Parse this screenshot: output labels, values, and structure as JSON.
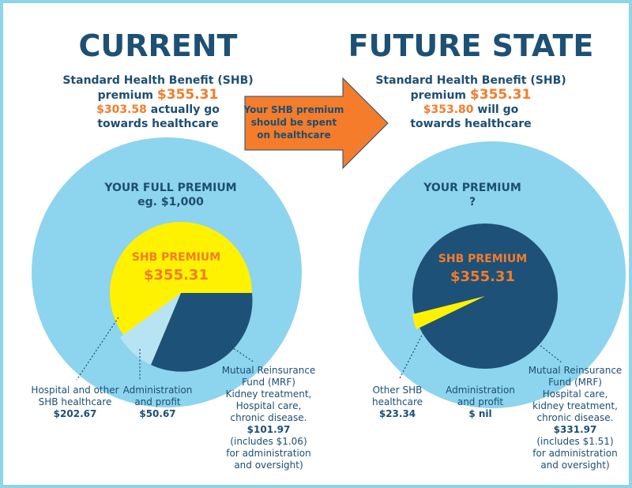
{
  "current": {
    "heading": "CURRENT",
    "sub_line1": "Standard Health Benefit (SHB)",
    "sub_line2_prefix": "premium ",
    "sub_line2_value": "$355.31",
    "sub_line3_value": "$303.58",
    "sub_line3_suffix": " actually go",
    "sub_line4": "towards healthcare",
    "outer_title": "YOUR FULL PREMIUM",
    "outer_sub": "eg. $1,000",
    "inner_title": "SHB PREMIUM",
    "inner_value": "$355.31",
    "label_hospital": {
      "line1": "Hospital and other",
      "line2": "SHB healthcare",
      "value": "$202.67"
    },
    "label_admin": {
      "line1": "Administration",
      "line2": "and profit",
      "value": "$50.67"
    },
    "label_mrf": {
      "line1": "Mutual Reinsurance",
      "line2": "Fund (MRF)",
      "line3": "Kidney treatment,",
      "line4": "Hospital care,",
      "line5": "chronic disease.",
      "value": "$101.97",
      "line6": "(includes $1.06)",
      "line7": "for administration",
      "line8": "and oversight)"
    }
  },
  "future": {
    "heading": "FUTURE STATE",
    "sub_line1": "Standard Health Benefit (SHB)",
    "sub_line2_prefix": "premium ",
    "sub_line2_value": "$355.31",
    "sub_line3_value": "$353.80",
    "sub_line3_suffix": " will go",
    "sub_line4": "towards healthcare",
    "outer_title": "YOUR PREMIUM",
    "outer_sub": "?",
    "inner_title": "SHB PREMIUM",
    "inner_value": "$355.31",
    "label_other": {
      "line1": "Other SHB",
      "line2": "healthcare",
      "value": "$23.34"
    },
    "label_admin": {
      "line1": "Administration",
      "line2": "and profit",
      "value": "$ nil"
    },
    "label_mrf": {
      "line1": "Mutual Reinsurance",
      "line2": "Fund (MRF)",
      "line3": "Hospital care,",
      "line4": "kidney treatment,",
      "line5": "chronic disease.",
      "value": "$331.97",
      "line6": "(includes $1.51)",
      "line7": "for administration",
      "line8": "and oversight)"
    }
  },
  "arrow": {
    "line1": "Your SHB premium",
    "line2": "should be spent",
    "line3": "on healthcare"
  },
  "colors": {
    "outer_circle": "#8dd4ee",
    "shb_yellow": "#fff200",
    "mrf_navy": "#1d5178",
    "admin_light": "#b8e3f3",
    "accent_orange": "#f47c2a",
    "heading_navy": "#1d5075",
    "frame": "#8fd3ec"
  }
}
